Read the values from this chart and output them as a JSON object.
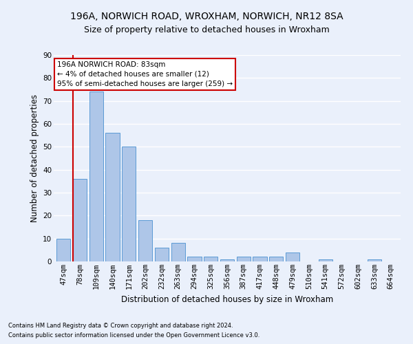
{
  "title1": "196A, NORWICH ROAD, WROXHAM, NORWICH, NR12 8SA",
  "title2": "Size of property relative to detached houses in Wroxham",
  "xlabel": "Distribution of detached houses by size in Wroxham",
  "ylabel": "Number of detached properties",
  "footnote1": "Contains HM Land Registry data © Crown copyright and database right 2024.",
  "footnote2": "Contains public sector information licensed under the Open Government Licence v3.0.",
  "categories": [
    "47sqm",
    "78sqm",
    "109sqm",
    "140sqm",
    "171sqm",
    "202sqm",
    "232sqm",
    "263sqm",
    "294sqm",
    "325sqm",
    "356sqm",
    "387sqm",
    "417sqm",
    "448sqm",
    "479sqm",
    "510sqm",
    "541sqm",
    "572sqm",
    "602sqm",
    "633sqm",
    "664sqm"
  ],
  "values": [
    10,
    36,
    74,
    56,
    50,
    18,
    6,
    8,
    2,
    2,
    1,
    2,
    2,
    2,
    4,
    0,
    1,
    0,
    0,
    1,
    0
  ],
  "bar_color": "#aec6e8",
  "bar_edge_color": "#5b9bd5",
  "subject_line_color": "#cc0000",
  "annotation_text": "196A NORWICH ROAD: 83sqm\n← 4% of detached houses are smaller (12)\n95% of semi-detached houses are larger (259) →",
  "annotation_box_color": "#ffffff",
  "annotation_box_edge": "#cc0000",
  "ylim": [
    0,
    90
  ],
  "yticks": [
    0,
    10,
    20,
    30,
    40,
    50,
    60,
    70,
    80,
    90
  ],
  "bg_color": "#eaf0fb",
  "axes_bg_color": "#eaf0fb",
  "grid_color": "#ffffff",
  "title1_fontsize": 10,
  "title2_fontsize": 9,
  "xlabel_fontsize": 8.5,
  "ylabel_fontsize": 8.5,
  "tick_fontsize": 7.5,
  "ann_fontsize": 7.5,
  "footnote_fontsize": 6
}
